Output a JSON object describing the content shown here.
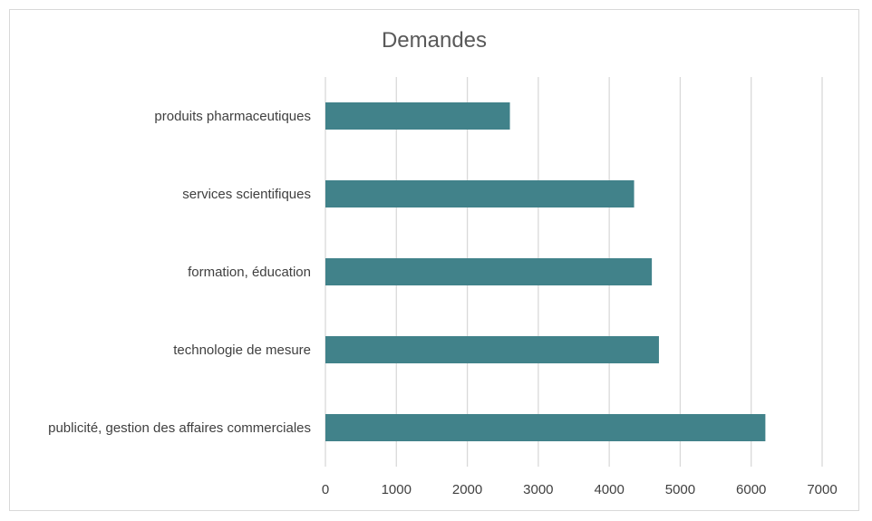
{
  "chart_data": {
    "type": "bar",
    "orientation": "horizontal",
    "title": "Demandes",
    "categories": [
      "produits pharmaceutiques",
      "services scientifiques",
      "formation, éducation",
      "technologie de mesure",
      "publicité, gestion des affaires commerciales"
    ],
    "values": [
      2600,
      4350,
      4600,
      4700,
      6200
    ],
    "xlim": [
      0,
      7000
    ],
    "xticks": [
      0,
      1000,
      2000,
      3000,
      4000,
      5000,
      6000,
      7000
    ],
    "grid": true,
    "legend": "none",
    "bar_color": "#41828A",
    "grid_color": "#d9d9d9"
  }
}
